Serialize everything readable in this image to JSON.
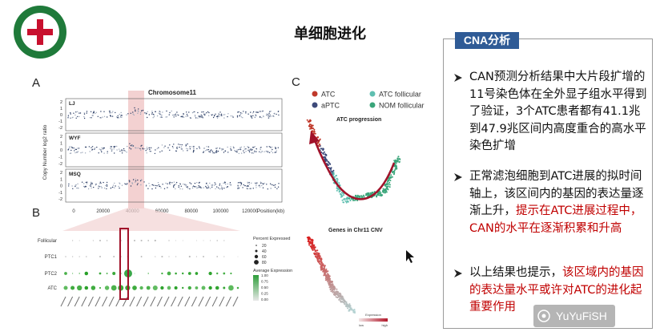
{
  "header": {
    "title": "单细胞进化"
  },
  "figure_a": {
    "label": "A",
    "title": "Chromosome11",
    "y_axis_label": "Copy Number log2 ratio",
    "samples": [
      "LJ",
      "WYF",
      "MSQ"
    ],
    "yticks": [
      "2",
      "1",
      "0",
      "-1",
      "-2"
    ],
    "xticks": [
      "0",
      "20000",
      "40000",
      "60000",
      "80000",
      "100000",
      "120000"
    ],
    "x_axis_label": "Position(kb)"
  },
  "figure_b": {
    "label": "B",
    "rows": [
      "Follicular",
      "PTC1",
      "PTC2",
      "ATC"
    ],
    "size_legend_title": "Percent Expressed",
    "size_legend": [
      "20",
      "40",
      "60",
      "80"
    ],
    "color_legend_title": "Average Expression",
    "color_legend": [
      "1.00",
      "0.75",
      "0.50",
      "0.25",
      "0.00"
    ]
  },
  "figure_c": {
    "label": "C",
    "legend": [
      "ATC",
      "ATC follicular",
      "aPTC",
      "NOM follicular"
    ],
    "top_title": "ATC progression",
    "bottom_title": "Genes in Chr11 CNV",
    "colorbar_title": "Expression",
    "colorbar_labels": [
      "low",
      "high"
    ]
  },
  "panel": {
    "heading": "CNA分析",
    "bullets": [
      [
        {
          "text": "CAN预测分析结果中大片段扩增的11号染色体在全外显子组水平得到了验证，3个ATC患者都有41.1兆到47.9兆区间内高度重合的高水平染色扩增",
          "emphasis": false
        }
      ],
      [
        {
          "text": "正常滤泡细胞到ATC进展的拟时间轴上，该区间内的基因的表达量逐渐上升，",
          "emphasis": false
        },
        {
          "text": "提示在ATC进展过程中，CAN的水平在逐渐积累和升高",
          "emphasis": true
        }
      ],
      [
        {
          "text": "以上结果也提示，",
          "emphasis": false
        },
        {
          "text": "该区域内的基因的表达量水平或许对ATC的进化起重要作用",
          "emphasis": true
        }
      ]
    ]
  },
  "watermark": "YuYuFiSH"
}
